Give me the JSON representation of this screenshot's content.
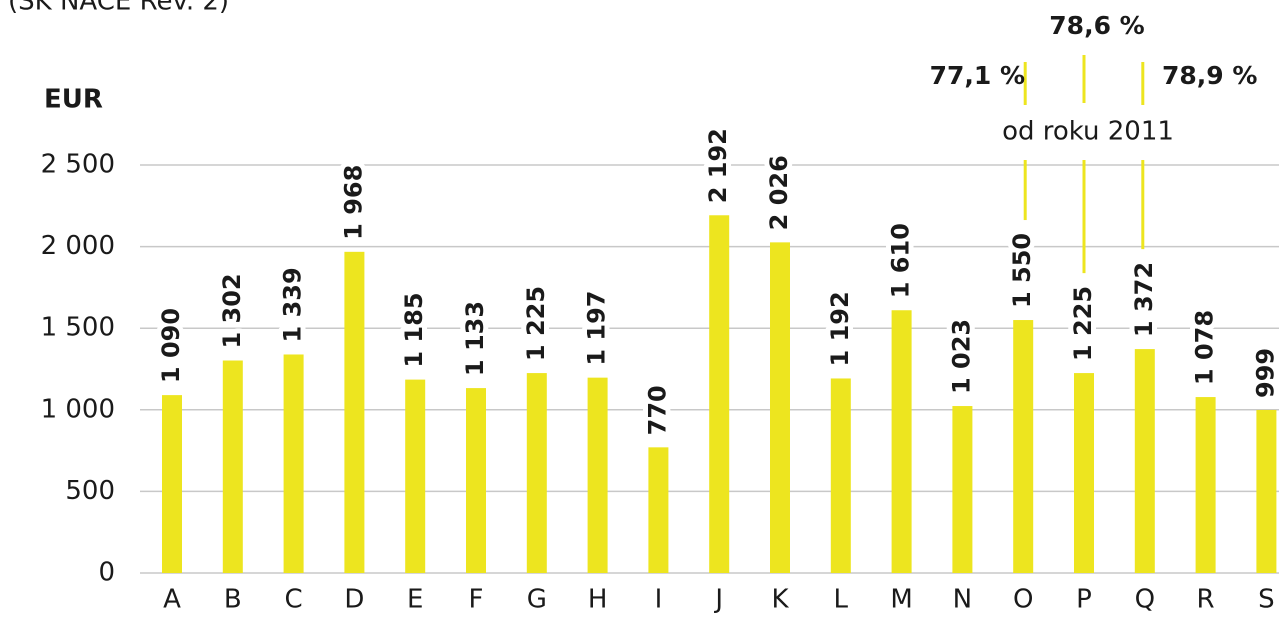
{
  "chart_data": {
    "type": "bar",
    "subtitle": "(SK NACE Rev. 2)",
    "y_axis_label": "EUR",
    "categories": [
      "A",
      "B",
      "C",
      "D",
      "E",
      "F",
      "G",
      "H",
      "I",
      "J",
      "K",
      "L",
      "M",
      "N",
      "O",
      "P",
      "Q",
      "R",
      "S"
    ],
    "values": [
      1090,
      1302,
      1339,
      1968,
      1185,
      1133,
      1225,
      1197,
      770,
      2192,
      2026,
      1192,
      1610,
      1023,
      1550,
      1225,
      1372,
      1078,
      999
    ],
    "value_labels": [
      "1 090",
      "1 302",
      "1 339",
      "1 968",
      "1 185",
      "1 133",
      "1 225",
      "1 197",
      "770",
      "2 192",
      "2 026",
      "1 192",
      "1 610",
      "1 023",
      "1 550",
      "1 225",
      "1 372",
      "1 078",
      "999"
    ],
    "color": "#ede51f",
    "ylim": [
      0,
      2500
    ],
    "yticks": [
      0,
      500,
      {
        "value": 1000,
        "label": "1 000"
      },
      {
        "value": 1500,
        "label": "1 500"
      },
      {
        "value": 2000,
        "label": "2 000"
      },
      {
        "value": 2500,
        "label": "2 500"
      }
    ],
    "grid": true,
    "annotations": [
      "77,1 %",
      "78,6 %",
      "78,9 %",
      "od roku 2011"
    ]
  }
}
